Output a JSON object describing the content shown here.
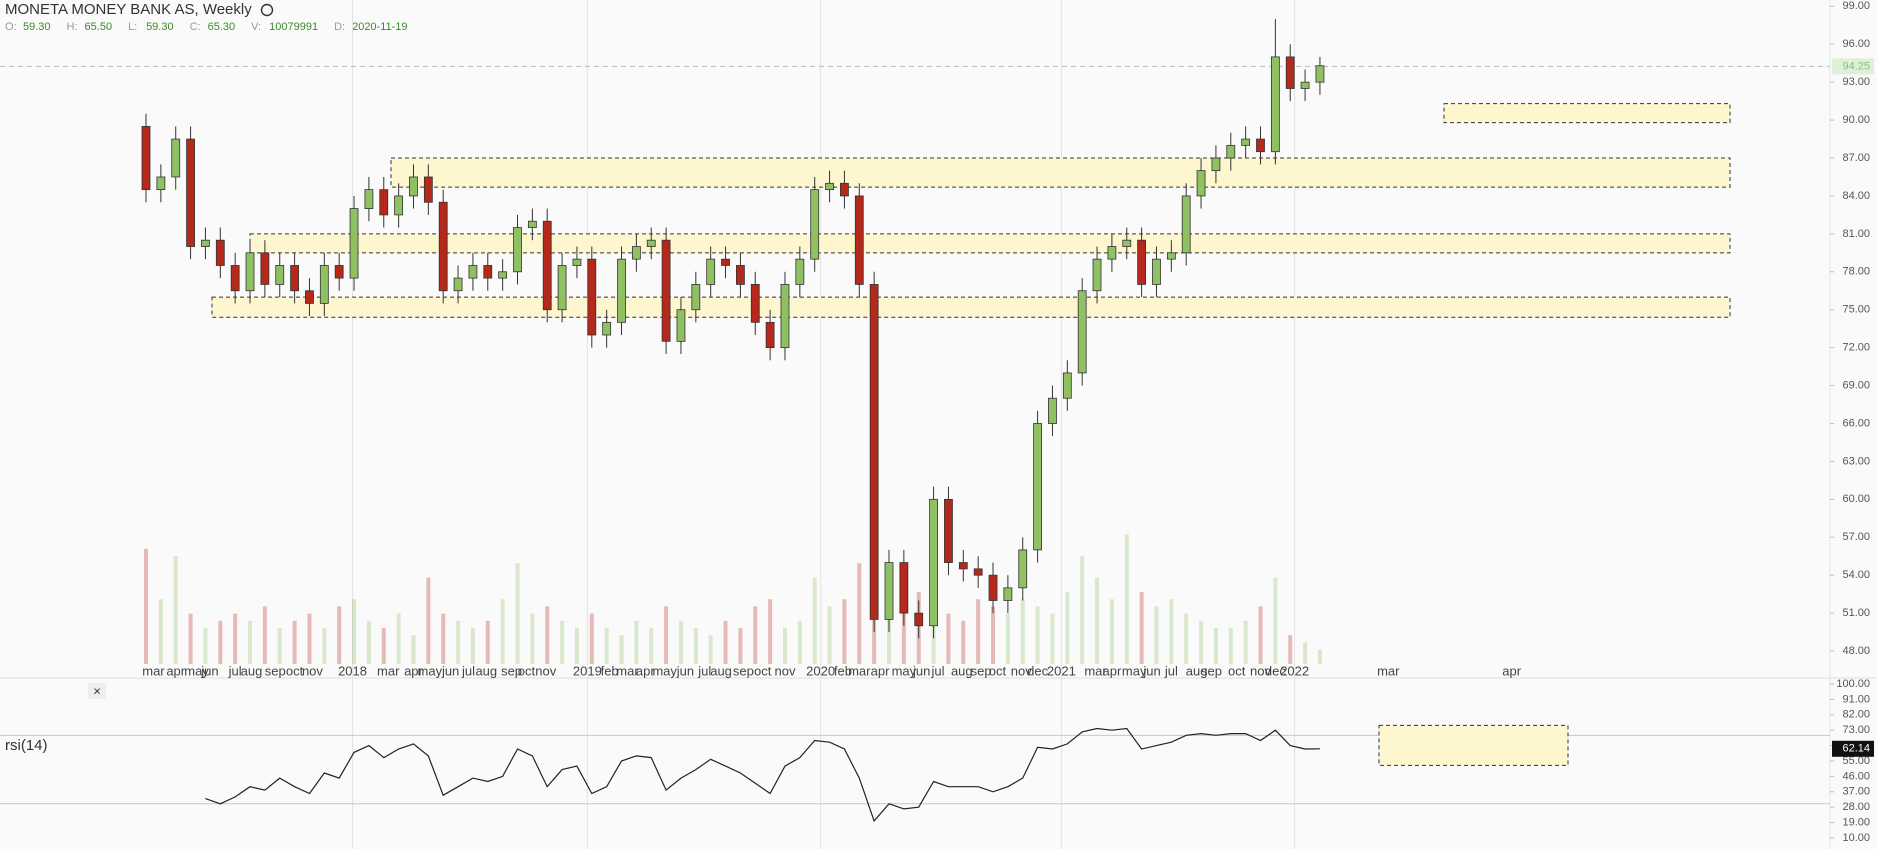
{
  "chart_data": {
    "type": "candlestick",
    "title": "MONETA MONEY BANK AS, Weekly",
    "header": {
      "labels": [
        "O:",
        "H:",
        "L:",
        "C:",
        "V:",
        "D:"
      ],
      "values": [
        "59.30",
        "65.50",
        "59.30",
        "65.30",
        "10079991",
        "2020-11-19"
      ]
    },
    "up_color": "#8fc163",
    "down_color": "#b5291c",
    "open": [
      89.5,
      84.5,
      85.5,
      88.5,
      80,
      80.5,
      78.5,
      76.5,
      79.5,
      77,
      78.5,
      76.5,
      75.5,
      78.5,
      77.5,
      83,
      84.5,
      82.5,
      84,
      85.5,
      83.5,
      76.5,
      77.5,
      78.5,
      77.5,
      78,
      81.5,
      82,
      75,
      78.5,
      79,
      73,
      74,
      79,
      80,
      80.5,
      72.5,
      75,
      77,
      79,
      78.5,
      77,
      74,
      72,
      77,
      79,
      84.5,
      85,
      84,
      77,
      50.5,
      55,
      51,
      50,
      60,
      55,
      54.5,
      54,
      52,
      53,
      56,
      66,
      68,
      70,
      76.5,
      79,
      80,
      80.5,
      77,
      79,
      79.5,
      84,
      86,
      87,
      88,
      88.5,
      87.5,
      95,
      92.5,
      93
    ],
    "high": [
      90.5,
      86.5,
      89.5,
      89.5,
      81.5,
      81.5,
      79.5,
      80.5,
      80.5,
      79.5,
      79.5,
      77.5,
      79.5,
      79.5,
      84,
      85.5,
      85.5,
      85,
      86.5,
      86.5,
      84.5,
      78.5,
      79.5,
      79.5,
      79,
      82.5,
      83,
      83,
      79.5,
      80,
      80,
      75,
      80,
      81,
      81.5,
      81.5,
      76,
      78,
      80,
      80,
      79.5,
      78,
      75,
      78,
      80,
      85.5,
      86,
      86,
      85,
      78,
      56,
      56,
      52,
      61,
      61,
      56,
      55.5,
      55,
      54,
      57,
      67,
      69,
      71,
      77.5,
      80,
      81,
      81.5,
      81.5,
      80,
      80.5,
      85,
      87,
      88,
      89,
      89.5,
      89.5,
      98,
      96,
      94,
      95
    ],
    "low": [
      83.5,
      83.5,
      84.5,
      79,
      79,
      77.5,
      75.5,
      75.5,
      76,
      76,
      75.5,
      74.5,
      74.5,
      76.5,
      76.5,
      82,
      81.5,
      81.5,
      83,
      82.5,
      75.5,
      75.5,
      76.5,
      76.5,
      76.5,
      77,
      80.5,
      74,
      74,
      77.5,
      72,
      72,
      73,
      78,
      79,
      71.5,
      71.5,
      74,
      76,
      77.5,
      76,
      73,
      71,
      71,
      76,
      78,
      83.5,
      83,
      76,
      49.5,
      49.5,
      50,
      49,
      49,
      54,
      53.5,
      53,
      51,
      51,
      52,
      55,
      65,
      67,
      69,
      75.5,
      78,
      79,
      76,
      76,
      78,
      78.5,
      83,
      85,
      86,
      87,
      86.5,
      86.5,
      91.5,
      91.5,
      92
    ],
    "close": [
      84.5,
      85.5,
      88.5,
      80,
      80.5,
      78.5,
      76.5,
      79.5,
      77,
      78.5,
      76.5,
      75.5,
      78.5,
      77.5,
      83,
      84.5,
      82.5,
      84,
      85.5,
      83.5,
      76.5,
      77.5,
      78.5,
      77.5,
      78,
      81.5,
      82,
      75,
      78.5,
      79,
      73,
      74,
      79,
      80,
      80.5,
      72.5,
      75,
      77,
      79,
      78.5,
      77,
      74,
      72,
      77,
      79,
      84.5,
      85,
      84,
      77,
      50.5,
      55,
      51,
      50,
      60,
      55,
      54.5,
      54,
      52,
      53,
      56,
      66,
      68,
      70,
      76.5,
      79,
      80,
      80.5,
      77,
      79,
      79.5,
      84,
      86,
      87,
      88,
      88.5,
      87.5,
      95,
      92.5,
      93,
      94.3
    ],
    "volume": [
      16000000,
      9000000,
      15000000,
      7000000,
      5000000,
      6000000,
      7000000,
      6000000,
      8000000,
      5000000,
      6000000,
      7000000,
      5000000,
      8000000,
      9000000,
      6000000,
      5000000,
      7000000,
      4000000,
      12000000,
      7000000,
      6000000,
      5000000,
      6000000,
      9000000,
      14000000,
      7000000,
      8000000,
      6000000,
      5000000,
      7000000,
      5000000,
      4000000,
      6000000,
      5000000,
      8000000,
      6000000,
      5000000,
      4000000,
      6000000,
      5000000,
      8000000,
      9000000,
      5000000,
      6000000,
      12000000,
      8000000,
      9000000,
      14000000,
      16000000,
      13000000,
      9000000,
      10000000,
      8000000,
      7000000,
      6000000,
      9000000,
      8000000,
      7000000,
      9000000,
      8000000,
      7000000,
      10000000,
      15000000,
      12000000,
      9000000,
      18000000,
      10000000,
      8000000,
      9000000,
      7000000,
      6000000,
      5000000,
      5000000,
      6000000,
      8000000,
      12000000,
      4000000,
      3000000,
      2000000
    ],
    "vlim": [
      0,
      25000000
    ],
    "ylim": [
      46.5,
      99.5
    ],
    "yticks": [
      {
        "value": 48,
        "label": "48.00"
      },
      {
        "value": 51,
        "label": "51.00"
      },
      {
        "value": 54,
        "label": "54.00"
      },
      {
        "value": 57,
        "label": "57.00"
      },
      {
        "value": 60,
        "label": "60.00"
      },
      {
        "value": 63,
        "label": "63.00"
      },
      {
        "value": 66,
        "label": "66.00"
      },
      {
        "value": 69,
        "label": "69.00"
      },
      {
        "value": 72,
        "label": "72.00"
      },
      {
        "value": 75,
        "label": "75.00"
      },
      {
        "value": 78,
        "label": "78.00"
      },
      {
        "value": 81,
        "label": "81.00"
      },
      {
        "value": 84,
        "label": "84.00"
      },
      {
        "value": 87,
        "label": "87.00"
      },
      {
        "value": 90,
        "label": "90.00"
      },
      {
        "value": 93,
        "label": "93.00"
      },
      {
        "value": 96,
        "label": "96.00"
      },
      {
        "value": 99,
        "label": "99.00"
      }
    ],
    "last_price": {
      "value": 94.25,
      "label": "94.25"
    },
    "zones": [
      {
        "low": 84.7,
        "high": 87
      },
      {
        "low": 79.5,
        "high": 81
      },
      {
        "low": 74.4,
        "high": 76
      },
      {
        "low": 89.8,
        "high": 91.3
      }
    ],
    "xticks": [
      {
        "value": 0.5,
        "label": "mar"
      },
      {
        "value": 2,
        "label": "apr"
      },
      {
        "value": 3.4,
        "label": "may"
      },
      {
        "value": 4.3,
        "label": "jun"
      },
      {
        "value": 6,
        "label": "jul"
      },
      {
        "value": 7.1,
        "label": "aug"
      },
      {
        "value": 8.7,
        "label": "sep"
      },
      {
        "value": 10,
        "label": "oct"
      },
      {
        "value": 11.2,
        "label": "nov"
      },
      {
        "value": 13.9,
        "label": "2018"
      },
      {
        "value": 16.3,
        "label": "mar"
      },
      {
        "value": 18,
        "label": "apr"
      },
      {
        "value": 19.1,
        "label": "may"
      },
      {
        "value": 20.5,
        "label": "jun"
      },
      {
        "value": 21.7,
        "label": "jul"
      },
      {
        "value": 22.9,
        "label": "aug"
      },
      {
        "value": 24.6,
        "label": "sep"
      },
      {
        "value": 25.6,
        "label": "oct"
      },
      {
        "value": 26.9,
        "label": "nov"
      },
      {
        "value": 29.7,
        "label": "2019"
      },
      {
        "value": 31.2,
        "label": "feb"
      },
      {
        "value": 32.4,
        "label": "mar"
      },
      {
        "value": 33.6,
        "label": "apr"
      },
      {
        "value": 34.9,
        "label": "may"
      },
      {
        "value": 36.3,
        "label": "jun"
      },
      {
        "value": 37.6,
        "label": "jul"
      },
      {
        "value": 38.7,
        "label": "aug"
      },
      {
        "value": 40.2,
        "label": "sep"
      },
      {
        "value": 41.5,
        "label": "oct"
      },
      {
        "value": 43,
        "label": "nov"
      },
      {
        "value": 45.4,
        "label": "2020"
      },
      {
        "value": 46.9,
        "label": "feb"
      },
      {
        "value": 48,
        "label": "mar"
      },
      {
        "value": 49.4,
        "label": "apr"
      },
      {
        "value": 51,
        "label": "may"
      },
      {
        "value": 52.2,
        "label": "jun"
      },
      {
        "value": 53.3,
        "label": "jul"
      },
      {
        "value": 54.9,
        "label": "aug"
      },
      {
        "value": 56.2,
        "label": "sep"
      },
      {
        "value": 57.3,
        "label": "oct"
      },
      {
        "value": 58.9,
        "label": "nov"
      },
      {
        "value": 60,
        "label": "dec"
      },
      {
        "value": 61.6,
        "label": "2021"
      },
      {
        "value": 63.9,
        "label": "mar"
      },
      {
        "value": 65,
        "label": "apr"
      },
      {
        "value": 66.5,
        "label": "may"
      },
      {
        "value": 67.7,
        "label": "jun"
      },
      {
        "value": 69,
        "label": "jul"
      },
      {
        "value": 70.7,
        "label": "aug"
      },
      {
        "value": 71.7,
        "label": "sep"
      },
      {
        "value": 73.4,
        "label": "oct"
      },
      {
        "value": 75,
        "label": "nov"
      },
      {
        "value": 76,
        "label": "dec"
      },
      {
        "value": 77.3,
        "label": "2022"
      },
      {
        "value": 83.6,
        "label": "mar"
      },
      {
        "value": 91.9,
        "label": "apr"
      }
    ],
    "rsi": {
      "title": "rsi(14)",
      "color": "#222222",
      "values": [
        null,
        null,
        null,
        null,
        33,
        30,
        34,
        40,
        38,
        45,
        40,
        36,
        48,
        45,
        60,
        64,
        57,
        62,
        65,
        58,
        35,
        40,
        45,
        43,
        46,
        62,
        58,
        40,
        50,
        52,
        36,
        40,
        55,
        58,
        57,
        38,
        45,
        50,
        56,
        52,
        48,
        42,
        36,
        52,
        57,
        67,
        66,
        62,
        45,
        20,
        30,
        27,
        28,
        43,
        40,
        40,
        40,
        37,
        40,
        45,
        63,
        62,
        65,
        72,
        74,
        73,
        74,
        62,
        64,
        66,
        70,
        71,
        70,
        71,
        71,
        67,
        73,
        64,
        62,
        62.14
      ],
      "last_label": "62.14",
      "levels": [
        70,
        30
      ],
      "ylim": [
        10,
        100
      ],
      "yticks": [
        {
          "value": 10,
          "label": "10.00"
        },
        {
          "value": 19,
          "label": "19.00"
        },
        {
          "value": 28,
          "label": "28.00"
        },
        {
          "value": 37,
          "label": "37.00"
        },
        {
          "value": 46,
          "label": "46.00"
        },
        {
          "value": 55,
          "label": "55.00"
        },
        {
          "value": 64,
          "label": "64.00"
        },
        {
          "value": 73,
          "label": "73.00"
        },
        {
          "value": 82,
          "label": "82.00"
        },
        {
          "value": 91,
          "label": "91.00"
        },
        {
          "value": 100,
          "label": "100.00"
        }
      ]
    }
  }
}
